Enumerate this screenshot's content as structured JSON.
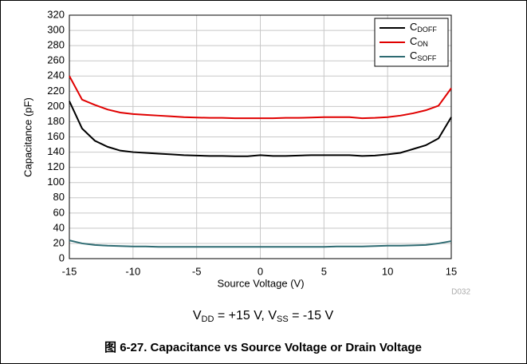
{
  "chart_data": {
    "type": "line",
    "x": [
      -15,
      -14,
      -13,
      -12,
      -11,
      -10,
      -9,
      -8,
      -7,
      -6,
      -5,
      -4,
      -3,
      -2,
      -1,
      0,
      1,
      2,
      3,
      4,
      5,
      6,
      7,
      8,
      9,
      10,
      11,
      12,
      13,
      14,
      15
    ],
    "series": [
      {
        "name": "CDOFF",
        "color": "#000000",
        "values": [
          207,
          171,
          155,
          147,
          142,
          140,
          139,
          138,
          137,
          136,
          135.5,
          135,
          135,
          134.5,
          134.5,
          136,
          135,
          135,
          135.5,
          136,
          136,
          136,
          136,
          135,
          135.5,
          137,
          139,
          144,
          149,
          158,
          186
        ]
      },
      {
        "name": "CON",
        "color": "#e00000",
        "values": [
          240,
          209,
          202,
          196,
          192,
          190,
          189,
          188,
          187,
          186,
          185.5,
          185,
          185,
          184.5,
          184.5,
          184.5,
          184.5,
          185,
          185,
          185.5,
          186,
          186,
          186,
          184.5,
          185,
          186,
          188,
          191,
          195,
          201,
          224
        ]
      },
      {
        "name": "CSOFF",
        "color": "#2e6b72",
        "values": [
          24,
          20,
          18,
          17,
          16.5,
          16,
          16,
          15.5,
          15.5,
          15.5,
          15.5,
          15.5,
          15.5,
          15.5,
          15.5,
          15.5,
          15.5,
          15.5,
          15.5,
          15.5,
          15.5,
          16,
          16,
          16,
          16.5,
          17,
          17,
          17.5,
          18,
          20,
          23
        ]
      }
    ],
    "xlim": [
      -15,
      15
    ],
    "xticks": [
      {
        "value": -15,
        "label": "-15"
      },
      {
        "value": -10,
        "label": "-10"
      },
      {
        "value": -5,
        "label": "-5"
      },
      0,
      5,
      10,
      15
    ],
    "ylim": [
      0,
      320
    ],
    "yticks": [
      0,
      20,
      40,
      60,
      80,
      100,
      120,
      140,
      160,
      180,
      200,
      220,
      240,
      260,
      280,
      300,
      320
    ],
    "xlabel": "Source Voltage (V)",
    "ylabel": "Capacitance (pF)",
    "grid": true,
    "legend": "upper right",
    "code": "D032",
    "annotation": [
      "V",
      "DD",
      " = +15 V, ",
      "V",
      "SS",
      " = -15 V"
    ],
    "caption": "图 6-27. Capacitance vs Source Voltage or Drain Voltage"
  }
}
